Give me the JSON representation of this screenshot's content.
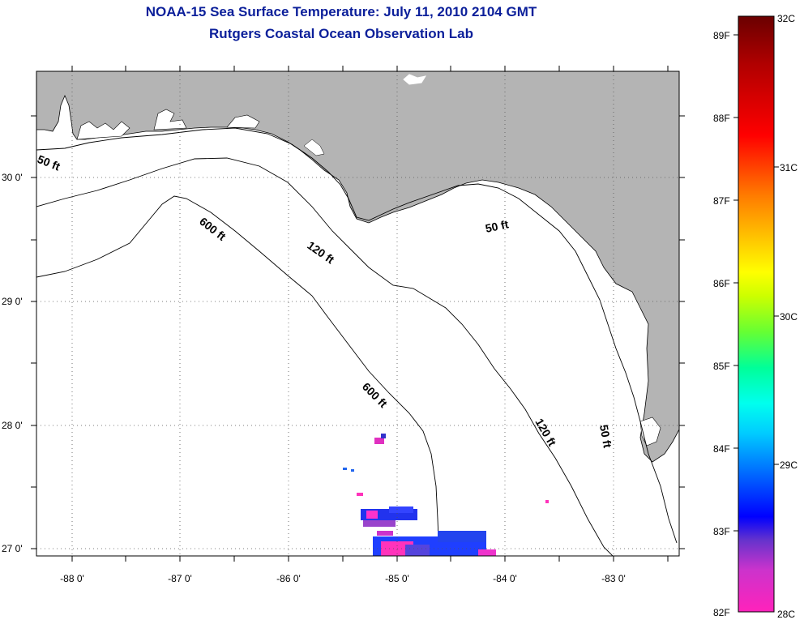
{
  "title": {
    "line1": "NOAA-15 Sea Surface Temperature:  July 11, 2010 2104 GMT",
    "line2": "Rutgers Coastal Ocean Observation Lab"
  },
  "map": {
    "lat_labels": [
      "30 0'",
      "29 0'",
      "28 0'",
      "27 0'"
    ],
    "lon_labels": [
      "-88 0'",
      "-87 0'",
      "-86 0'",
      "-85 0'",
      "-84 0'",
      "-83 0'"
    ],
    "contour_labels": {
      "c50_west": "50 ft",
      "c600_north": "600 ft",
      "c120_north": "120 ft",
      "c50_east": "50 ft",
      "c600_south": "600 ft",
      "c120_south": "120 ft",
      "c50_south": "50 ft"
    },
    "colors": {
      "land": "#b4b4b4",
      "water": "#ffffff"
    }
  },
  "colorbar": {
    "fahrenheit_labels": [
      "89F",
      "88F",
      "87F",
      "86F",
      "85F",
      "84F",
      "83F",
      "82F"
    ],
    "celsius_labels": [
      "32C",
      "31C",
      "30C",
      "29C",
      "28C"
    ]
  }
}
